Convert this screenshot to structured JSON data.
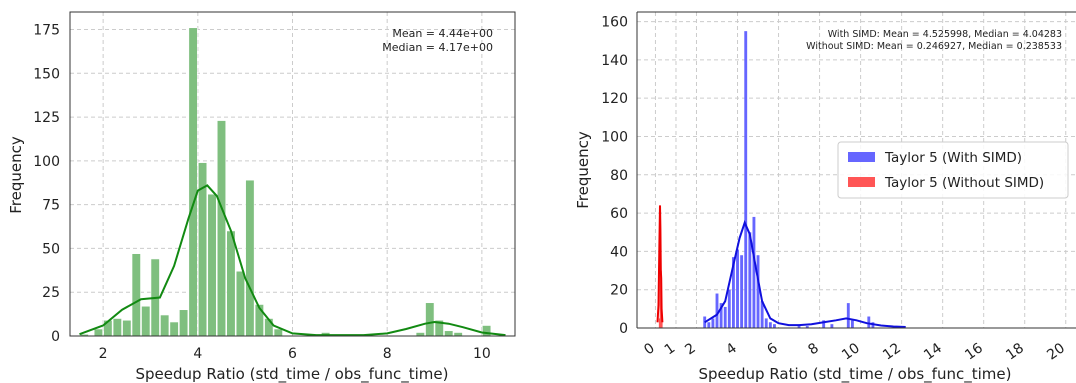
{
  "chart_data": [
    {
      "type": "histogram",
      "xlabel": "Speedup Ratio (std_time / obs_func_time)",
      "ylabel": "Frequency",
      "xlim": [
        1.3,
        10.7
      ],
      "ylim": [
        0,
        185
      ],
      "xticks": [
        2,
        4,
        6,
        8,
        10
      ],
      "yticks": [
        0,
        25,
        50,
        75,
        100,
        125,
        150,
        175
      ],
      "grid": true,
      "colors": {
        "bars": "#7fbf7f",
        "kde": "#128a12"
      },
      "annotations": [
        "Mean = 4.44e+00",
        "Median = 4.17e+00"
      ],
      "bin_width": 0.18,
      "bins": [
        [
          1.6,
          1
        ],
        [
          1.9,
          4
        ],
        [
          2.1,
          9
        ],
        [
          2.3,
          10
        ],
        [
          2.5,
          9
        ],
        [
          2.7,
          47
        ],
        [
          2.9,
          17
        ],
        [
          3.1,
          44
        ],
        [
          3.3,
          12
        ],
        [
          3.5,
          8
        ],
        [
          3.7,
          15
        ],
        [
          3.9,
          176
        ],
        [
          4.1,
          99
        ],
        [
          4.3,
          81
        ],
        [
          4.5,
          123
        ],
        [
          4.7,
          60
        ],
        [
          4.9,
          37
        ],
        [
          5.1,
          89
        ],
        [
          5.3,
          18
        ],
        [
          5.5,
          10
        ],
        [
          5.7,
          4
        ],
        [
          6.7,
          2
        ],
        [
          8.7,
          2
        ],
        [
          8.9,
          19
        ],
        [
          9.1,
          9
        ],
        [
          9.3,
          3
        ],
        [
          9.5,
          2
        ],
        [
          10.1,
          6
        ]
      ],
      "kde": {
        "x": [
          1.5,
          2.0,
          2.4,
          2.8,
          3.2,
          3.5,
          3.8,
          4.0,
          4.2,
          4.4,
          4.7,
          5.0,
          5.3,
          5.6,
          6.0,
          6.5,
          7.0,
          7.5,
          8.0,
          8.4,
          8.8,
          9.0,
          9.3,
          9.6,
          10.0,
          10.5
        ],
        "y": [
          1,
          6,
          15,
          21,
          22,
          40,
          67,
          83,
          86,
          80,
          60,
          33,
          16,
          6,
          1.5,
          0.5,
          0.5,
          0.5,
          1.5,
          4,
          7,
          8,
          7,
          5,
          2,
          0.5
        ]
      }
    },
    {
      "type": "histogram",
      "xlabel": "Speedup Ratio (std_time / obs_func_time)",
      "ylabel": "Frequency",
      "xlim": [
        -0.9,
        20.5
      ],
      "ylim": [
        0,
        165
      ],
      "xticks": [
        0,
        1,
        2,
        4,
        6,
        8,
        10,
        12,
        14,
        16,
        18,
        20
      ],
      "xtick_labels": [
        "0",
        "1",
        "2",
        "4",
        "6",
        "8",
        "10",
        "12",
        "14",
        "16",
        "18",
        "20"
      ],
      "yticks": [
        0,
        20,
        40,
        60,
        80,
        100,
        120,
        140,
        160
      ],
      "grid": true,
      "legend": {
        "placement": "center-right",
        "entries": [
          "Taylor 5 (With SIMD)",
          "Taylor 5 (Without SIMD)"
        ]
      },
      "annotations": [
        "With SIMD: Mean = 4.525998, Median = 4.04283",
        "Without SIMD: Mean = 0.246927, Median = 0.238533"
      ],
      "series": [
        {
          "name": "Taylor 5 (With SIMD)",
          "color": "#6666ff",
          "kde_color": "#1010dd",
          "bin_width": 0.14,
          "bins": [
            [
              2.4,
              6
            ],
            [
              2.6,
              3
            ],
            [
              2.8,
              5
            ],
            [
              3.0,
              18
            ],
            [
              3.2,
              13
            ],
            [
              3.4,
              11
            ],
            [
              3.6,
              20
            ],
            [
              3.8,
              37
            ],
            [
              4.0,
              41
            ],
            [
              4.2,
              38
            ],
            [
              4.4,
              155
            ],
            [
              4.6,
              50
            ],
            [
              4.8,
              58
            ],
            [
              5.0,
              38
            ],
            [
              5.2,
              14
            ],
            [
              5.4,
              5
            ],
            [
              5.6,
              3
            ],
            [
              5.8,
              2
            ],
            [
              7.0,
              1
            ],
            [
              7.4,
              1
            ],
            [
              8.2,
              4
            ],
            [
              8.6,
              2
            ],
            [
              9.4,
              13
            ],
            [
              9.6,
              4
            ],
            [
              10.4,
              6
            ],
            [
              10.6,
              3
            ]
          ],
          "kde": {
            "x": [
              2.4,
              3.0,
              3.4,
              3.8,
              4.1,
              4.35,
              4.6,
              4.9,
              5.2,
              5.6,
              6.0,
              6.5,
              7.0,
              7.6,
              8.2,
              8.8,
              9.3,
              9.8,
              10.3,
              11.0,
              11.6,
              12.2
            ],
            "y": [
              3,
              7,
              14,
              33,
              47,
              55,
              49,
              31,
              14,
              5,
              2.5,
              1.5,
              1.5,
              2,
              3,
              4,
              5,
              4,
              2.5,
              1.3,
              0.8,
              0.5
            ]
          }
        },
        {
          "name": "Taylor 5 (Without SIMD)",
          "color": "#ff5555",
          "kde_color": "#ee0000",
          "bin_width": 0.03,
          "bins": [
            [
              0.18,
              5
            ],
            [
              0.22,
              63
            ],
            [
              0.26,
              30
            ],
            [
              0.3,
              6
            ]
          ],
          "kde": {
            "x": [
              0.1,
              0.15,
              0.19,
              0.22,
              0.24,
              0.26,
              0.28,
              0.3,
              0.34
            ],
            "y": [
              3,
              12,
              44,
              64,
              52,
              30,
              26,
              10,
              3
            ]
          }
        }
      ]
    }
  ]
}
